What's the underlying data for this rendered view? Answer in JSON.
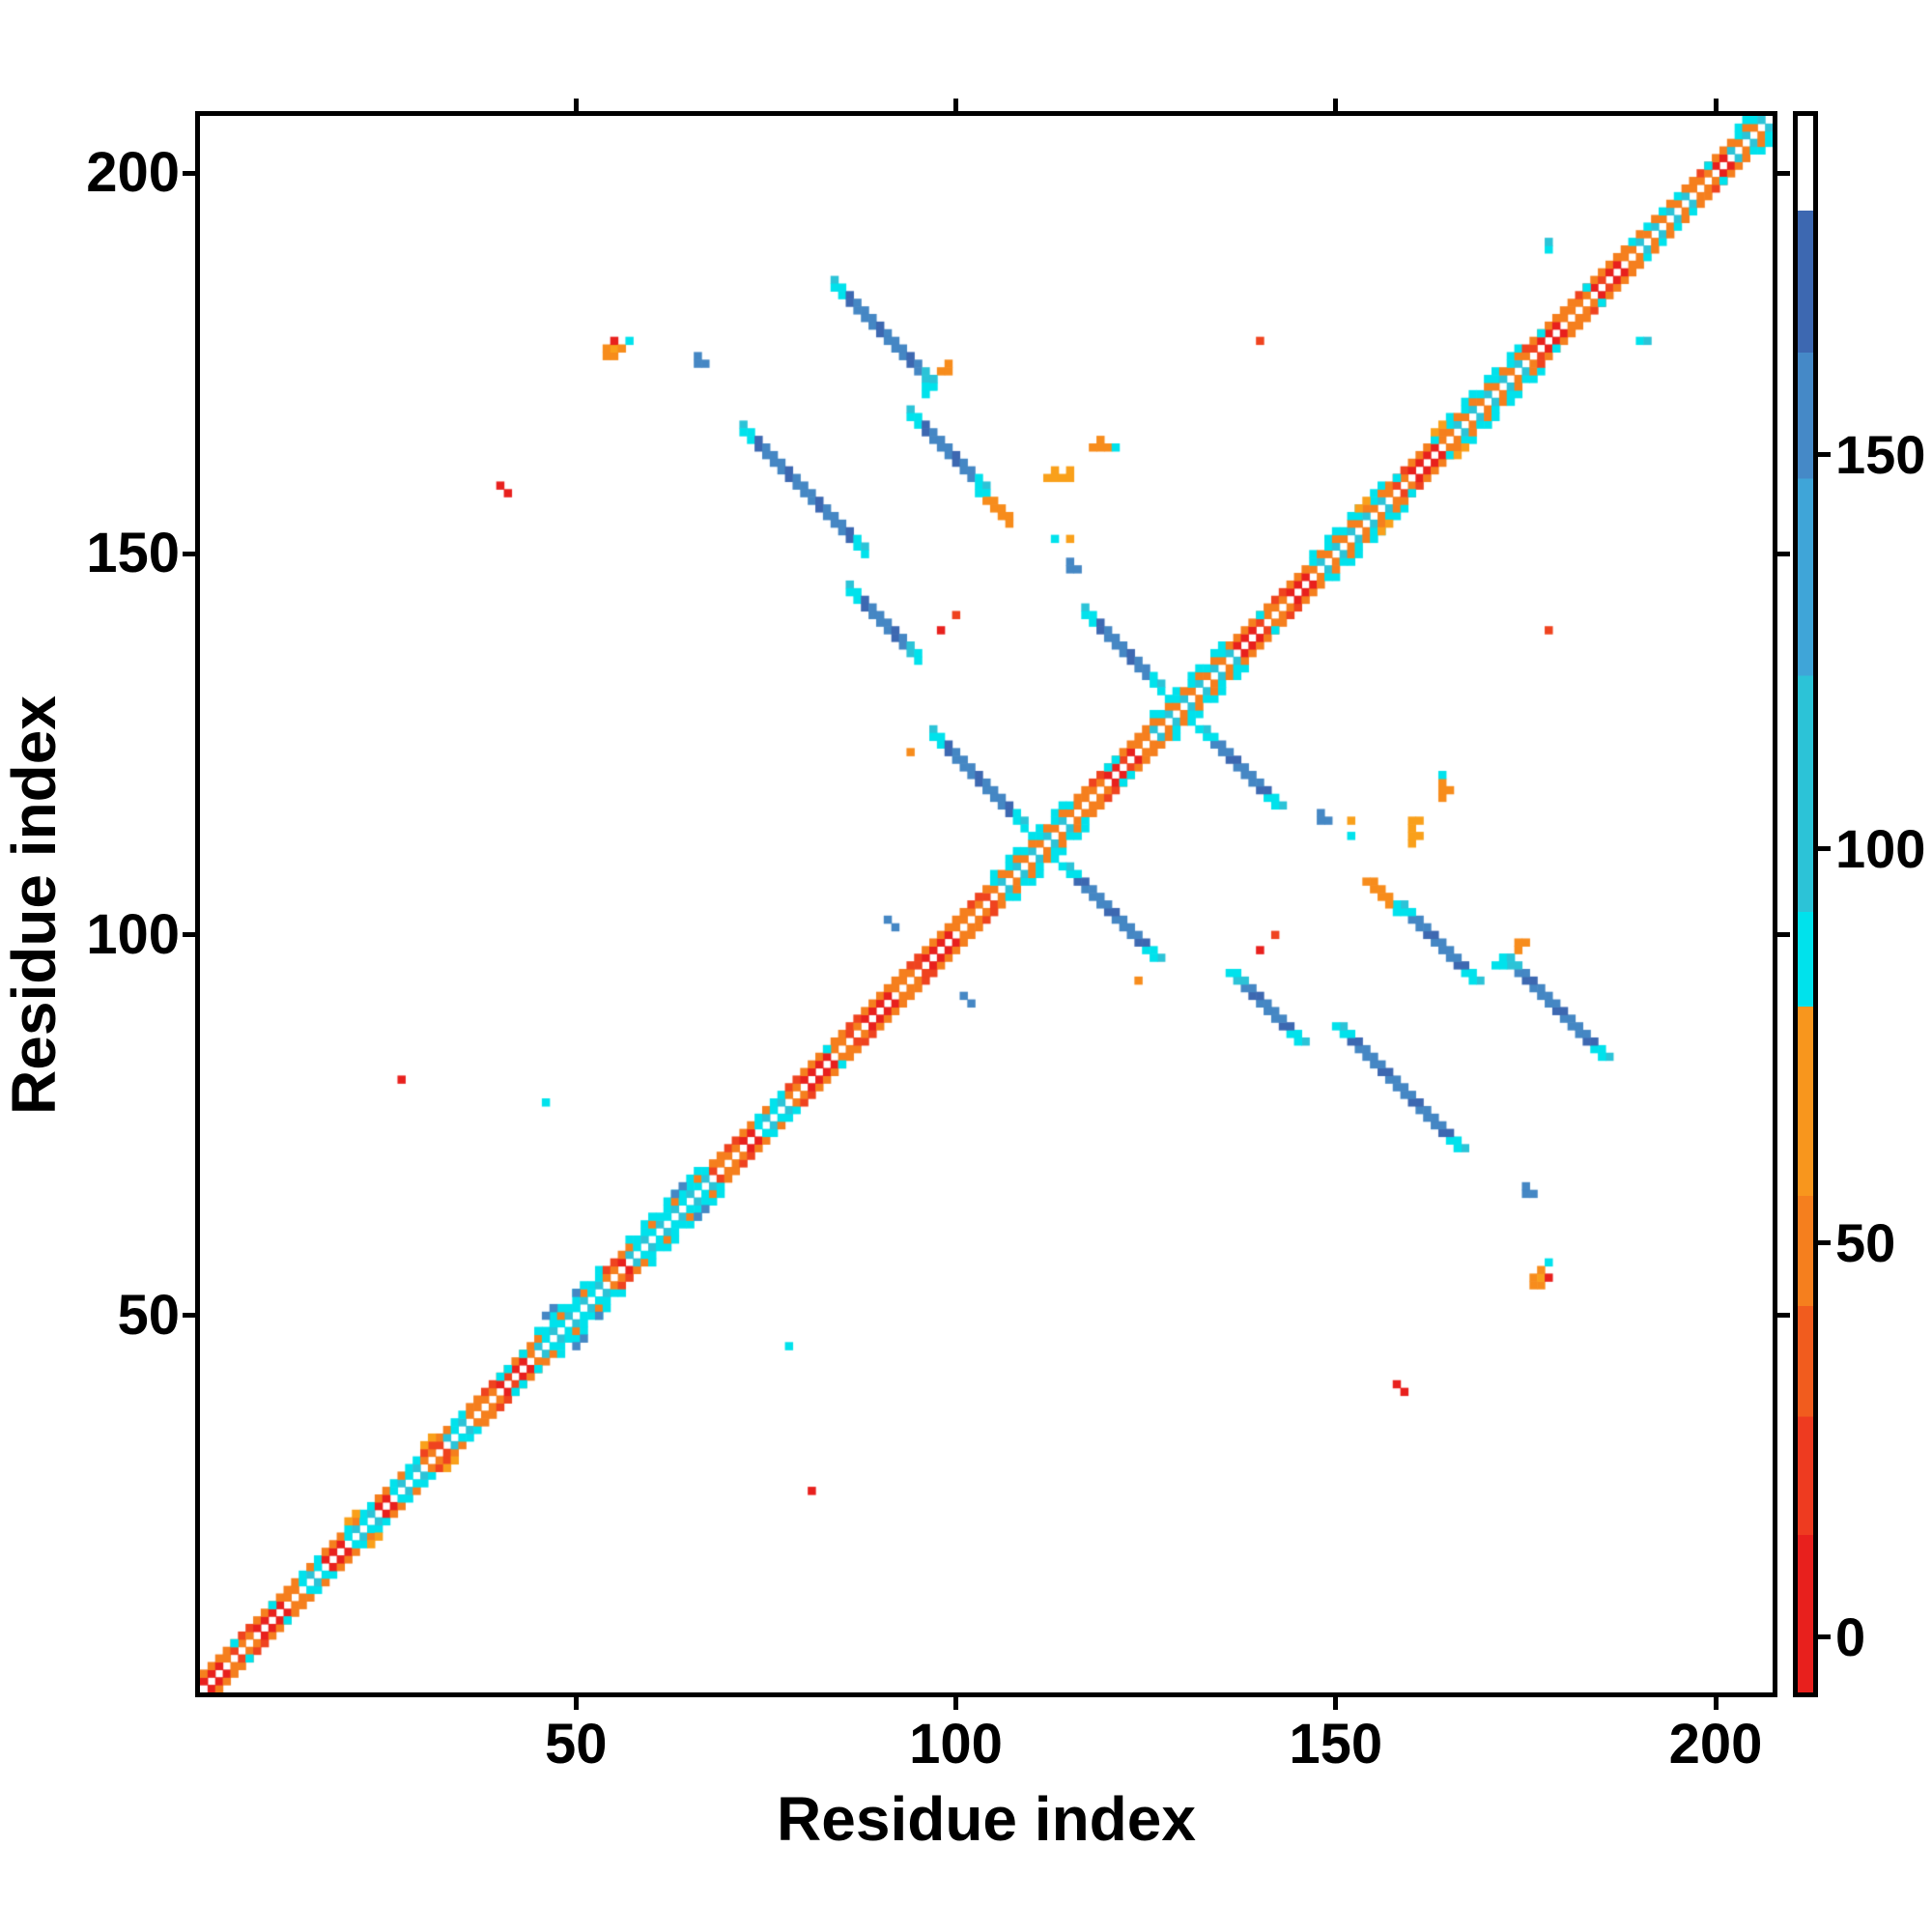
{
  "figure": {
    "x_axis_title": "Residue index",
    "y_axis_title": "Residue index"
  },
  "chart_data": {
    "type": "heatmap",
    "title": "",
    "xlabel": "Residue index",
    "ylabel": "Residue index",
    "x_ticks": [
      50,
      100,
      150,
      200
    ],
    "y_ticks": [
      50,
      100,
      150,
      200
    ],
    "axis_range": [
      1,
      207
    ],
    "grid": false,
    "legend_position": "right-colorbar",
    "background": "#ffffff",
    "palette": {
      "red": "#e8201d",
      "redorange": "#ef431f",
      "orange": "#f57f1e",
      "orange2": "#f78c1c",
      "lightorange": "#f9a01b",
      "cyan": "#00e2ec",
      "teal": "#2cc3d7",
      "blue": "#4587c4",
      "slate": "#3d68b1",
      "white": "#ffffff"
    },
    "colorbar": {
      "ticks": [
        0,
        50,
        100,
        150
      ],
      "value_range": [
        -7,
        193
      ],
      "segments": [
        {
          "from": -7,
          "to": 13,
          "color": "#e8201d"
        },
        {
          "from": 13,
          "to": 28,
          "color": "#ee3b20"
        },
        {
          "from": 28,
          "to": 42,
          "color": "#f15c1e"
        },
        {
          "from": 42,
          "to": 56,
          "color": "#f57f1e"
        },
        {
          "from": 56,
          "to": 80,
          "color": "#f8961d"
        },
        {
          "from": 80,
          "to": 92,
          "color": "#00e2ec"
        },
        {
          "from": 92,
          "to": 122,
          "color": "#2cc3d7"
        },
        {
          "from": 122,
          "to": 147,
          "color": "#3fa5d8"
        },
        {
          "from": 147,
          "to": 163,
          "color": "#4589c7"
        },
        {
          "from": 163,
          "to": 181,
          "color": "#3d68b1"
        },
        {
          "from": 181,
          "to": 193,
          "color": "#ffffff"
        }
      ]
    },
    "symmetric": true,
    "diagonal": {
      "inner_colors": [
        "red",
        "orange"
      ],
      "outer_colors": [
        "orange",
        "redorange"
      ],
      "cyan_regions": [
        {
          "from": 14,
          "to": 16
        },
        {
          "from": 20,
          "to": 23
        },
        {
          "from": 26,
          "to": 29
        },
        {
          "from": 33,
          "to": 35
        },
        {
          "from": 45,
          "to": 53,
          "wide": true
        },
        {
          "from": 57,
          "to": 67,
          "wide": true
        },
        {
          "from": 74,
          "to": 77
        },
        {
          "from": 105,
          "to": 115,
          "mixed": true,
          "wide": true
        },
        {
          "from": 126,
          "to": 136,
          "mixed": true,
          "wide": true
        },
        {
          "from": 147,
          "to": 156,
          "mixed": true,
          "wide": true
        },
        {
          "from": 165,
          "to": 174,
          "mixed": true,
          "wide": true
        },
        {
          "from": 189,
          "to": 196,
          "mixed": true
        },
        {
          "from": 202,
          "to": 207,
          "mixed": true,
          "wide": true
        }
      ],
      "cyan_sprinkles": [
        5,
        10,
        40,
        41,
        43,
        83,
        120,
        121,
        140,
        158,
        163,
        177,
        183,
        199
      ]
    },
    "streaks": [
      {
        "i": 84,
        "j": 186,
        "n": 14
      },
      {
        "i": 72,
        "j": 167,
        "n": 17
      },
      {
        "i": 94,
        "j": 169,
        "n": 11
      },
      {
        "i": 86,
        "j": 146,
        "n": 10
      },
      {
        "i": 97,
        "j": 127,
        "n": 13
      },
      {
        "i": 117,
        "j": 143,
        "n": 11
      }
    ],
    "cells": [
      [
        98,
        174,
        "orange2"
      ],
      [
        99,
        174,
        "orange2"
      ],
      [
        99,
        175,
        "orange2"
      ],
      [
        96,
        171,
        "cyan"
      ],
      [
        96,
        172,
        "cyan"
      ],
      [
        97,
        172,
        "cyan"
      ],
      [
        97,
        173,
        "teal"
      ],
      [
        104,
        157,
        "orange2"
      ],
      [
        105,
        157,
        "orange2"
      ],
      [
        105,
        156,
        "orange2"
      ],
      [
        106,
        156,
        "orange2"
      ],
      [
        106,
        155,
        "orange2"
      ],
      [
        107,
        155,
        "orange2"
      ],
      [
        107,
        154,
        "orange2"
      ],
      [
        103,
        158,
        "cyan"
      ],
      [
        54,
        176,
        "orange2"
      ],
      [
        54,
        177,
        "orange2"
      ],
      [
        55,
        176,
        "orange2"
      ],
      [
        55,
        177,
        "lightorange"
      ],
      [
        55,
        178,
        "red"
      ],
      [
        56,
        177,
        "orange2"
      ],
      [
        57,
        178,
        "cyan"
      ],
      [
        66,
        176,
        "blue"
      ],
      [
        66,
        175,
        "blue"
      ],
      [
        67,
        175,
        "blue"
      ],
      [
        112,
        160,
        "lightorange"
      ],
      [
        113,
        160,
        "lightorange"
      ],
      [
        113,
        161,
        "lightorange"
      ],
      [
        114,
        160,
        "lightorange"
      ],
      [
        115,
        160,
        "lightorange"
      ],
      [
        115,
        161,
        "lightorange"
      ],
      [
        118,
        164,
        "orange2"
      ],
      [
        119,
        164,
        "orange2"
      ],
      [
        119,
        165,
        "orange2"
      ],
      [
        120,
        164,
        "orange2"
      ],
      [
        121,
        164,
        "cyan"
      ],
      [
        113,
        152,
        "cyan"
      ],
      [
        115,
        152,
        "lightorange"
      ],
      [
        115,
        149,
        "blue"
      ],
      [
        115,
        148,
        "blue"
      ],
      [
        116,
        148,
        "blue"
      ],
      [
        98,
        140,
        "red"
      ],
      [
        100,
        142,
        "redorange"
      ],
      [
        140,
        178,
        "redorange"
      ],
      [
        40,
        159,
        "red"
      ],
      [
        41,
        158,
        "red"
      ],
      [
        27,
        81,
        "red"
      ],
      [
        46,
        78,
        "cyan"
      ],
      [
        178,
        190,
        "cyan"
      ],
      [
        178,
        191,
        "teal"
      ],
      [
        46,
        50,
        "blue"
      ],
      [
        47,
        51,
        "blue"
      ],
      [
        50,
        53,
        "blue"
      ],
      [
        63,
        66,
        "blue"
      ],
      [
        64,
        67,
        "blue"
      ],
      [
        91,
        102,
        "blue"
      ],
      [
        92,
        101,
        "blue"
      ],
      [
        94,
        124,
        "orange2"
      ],
      [
        20,
        23,
        "lightorange"
      ],
      [
        21,
        24,
        "lightorange"
      ],
      [
        30,
        33,
        "lightorange"
      ],
      [
        31,
        34,
        "lightorange"
      ],
      [
        153,
        156,
        "lightorange"
      ],
      [
        154,
        157,
        "lightorange"
      ],
      [
        163,
        166,
        "lightorange"
      ],
      [
        164,
        167,
        "lightorange"
      ]
    ]
  }
}
